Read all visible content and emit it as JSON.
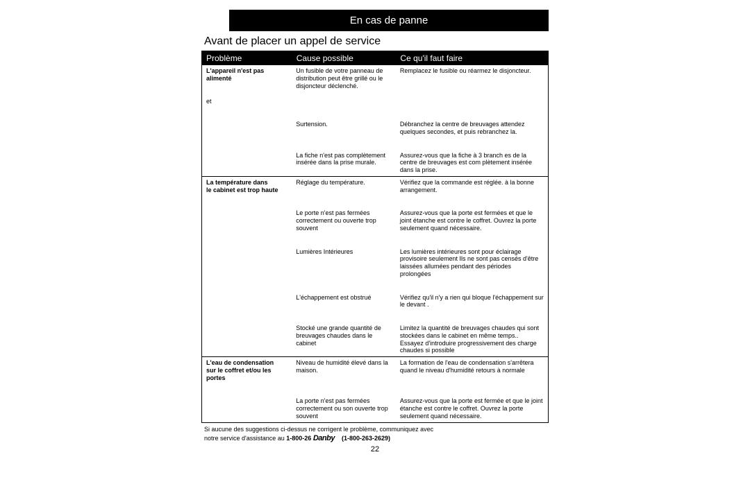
{
  "header": {
    "title_bar": "En cas de panne",
    "subtitle": "Avant de placer un appel de service"
  },
  "table": {
    "columns": [
      "Problème",
      "Cause possible",
      "Ce qu'il faut faire"
    ],
    "sections": [
      {
        "problem_lines": [
          "L'appareil n'est pas",
          "alimenté",
          "",
          "",
          "et"
        ],
        "problem_bold": true,
        "rows": [
          {
            "cause": "Un fusible de votre panneau de distribution peut être grillé ou le disjoncteur déclenché.",
            "fix": "Remplacez le fusible ou réarmez le disjoncteur."
          },
          {
            "cause": "Surtension.",
            "fix": "Débranchez la centre de breuvages attendez quelques secondes, et puis rebranchez la."
          },
          {
            "cause": "La fiche n'est pas complètement insérée dans la prise murale.",
            "fix": "Assurez-vous que la fiche à 3 branch es de la centre de breuvages est com plètement insérée dans la prise."
          }
        ]
      },
      {
        "problem_lines": [
          "La température dans",
          "le cabinet est trop haute"
        ],
        "problem_bold": true,
        "rows": [
          {
            "cause": "Réglage du température.",
            "fix": "Vérifiez que la commande est réglée. à la bonne arrangement."
          },
          {
            "cause": "Le porte n'est pas fermées correctement ou ouverte trop souvent",
            "fix": "Assurez-vous que la porte est fermées et que le joint étanche est contre le coffret. Ouvrez la porte seulement quand nécessaire."
          },
          {
            "cause": "Lumières Intérieures",
            "fix": "Les lumières intérieures sont pour éclairage provisoire seulement Ils ne sont pas censés d'être laissées allumées pendant des périodes prolongées"
          },
          {
            "cause": "L'échappement est obstrué",
            "fix": "Vérifiez qu'il n'y a rien qui bloque l'échappement sur le devant ."
          },
          {
            "cause": "Stocké une grande quantité de breuvages chaudes dans le cabinet",
            "fix": "Limitez la quantité de breuvages chaudes qui sont stockées dans le cabinet en même temps.. Essayez d'introduire progressivement des charge chaudes si possible"
          }
        ]
      },
      {
        "problem_lines": [
          "L'eau de condensation",
          "sur le coffret et/ou les",
          "portes"
        ],
        "problem_bold": true,
        "rows": [
          {
            "cause": "Niveau de humidité élevé dans la maison.",
            "fix": "La formation de l'eau de condensation s'arrêtera quand le niveau d'humidité retours à normale"
          },
          {
            "cause": "La porte n'est pas fermées correctement ou son ouverte trop souvent",
            "fix": "Assurez-vous que la porte est fermée et que le joint étanche est contre le coffret. Ouvrez la porte seulement quand nécessaire."
          }
        ]
      }
    ]
  },
  "footer": {
    "line1": "Si aucune des suggestions ci-dessus ne corrigent le problème, communiquez avec",
    "line2a": "notre service d'assistance au ",
    "phone1": "1-800-26",
    "brand": "Danby",
    "phone2": "(1-800-263-2629)",
    "page_number": "22"
  }
}
